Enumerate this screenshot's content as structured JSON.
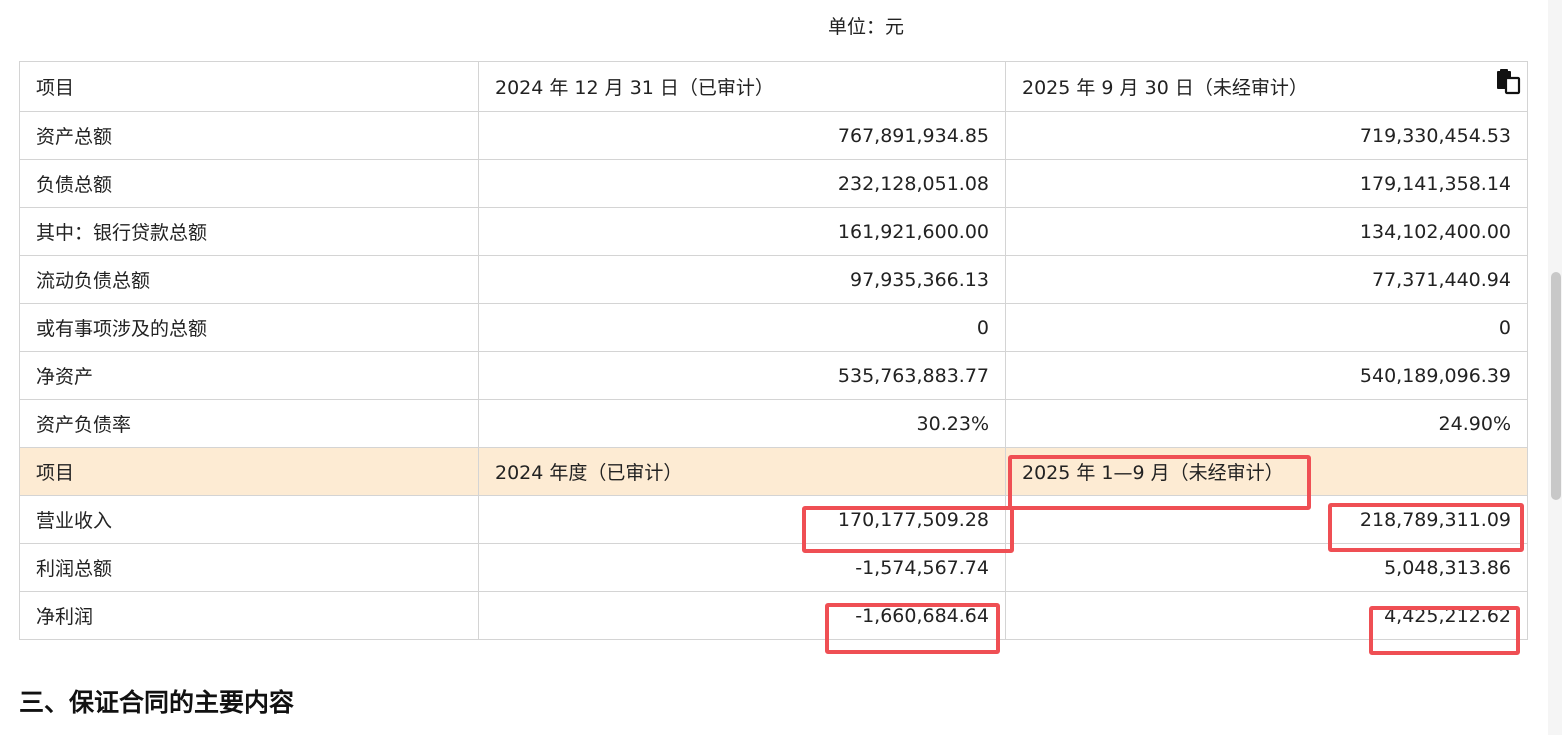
{
  "unit_label": "单位：元",
  "table": {
    "rows": [
      {
        "label": "项目",
        "col1": "2024 年 12 月 31 日（已审计）",
        "col2": "2025 年 9 月 30 日（未经审计）"
      },
      {
        "label": "资产总额",
        "col1": "767,891,934.85",
        "col2": "719,330,454.53"
      },
      {
        "label": "负债总额",
        "col1": "232,128,051.08",
        "col2": "179,141,358.14"
      },
      {
        "label": "其中：银行贷款总额",
        "col1": "161,921,600.00",
        "col2": "134,102,400.00"
      },
      {
        "label": "流动负债总额",
        "col1": "97,935,366.13",
        "col2": "77,371,440.94"
      },
      {
        "label": "或有事项涉及的总额",
        "col1": "0",
        "col2": "0"
      },
      {
        "label": "净资产",
        "col1": "535,763,883.77",
        "col2": "540,189,096.39"
      },
      {
        "label": "资产负债率",
        "col1": "30.23%",
        "col2": "24.90%"
      },
      {
        "label": "项目",
        "col1": "2024 年度（已审计）",
        "col2": "2025 年 1—9 月（未经审计）"
      },
      {
        "label": "营业收入",
        "col1": "170,177,509.28",
        "col2": "218,789,311.09"
      },
      {
        "label": "利润总额",
        "col1": "-1,574,567.74",
        "col2": "5,048,313.86"
      },
      {
        "label": "净利润",
        "col1": "-1,660,684.64",
        "col2": "4,425,212.62"
      }
    ]
  },
  "section_title": "三、保证合同的主要内容",
  "icons": {
    "copy": "copy-icon"
  },
  "colors": {
    "highlight": "#ef4f54",
    "subheader_bg": "#fdebd3",
    "border": "#d4d4d4"
  }
}
